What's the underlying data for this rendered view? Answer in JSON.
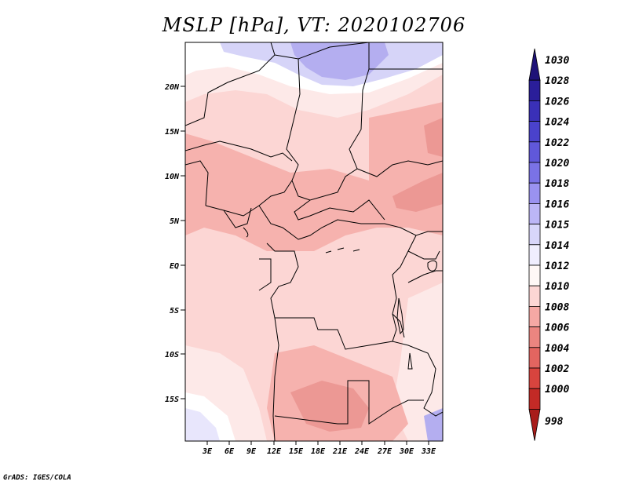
{
  "title": "MSLP [hPa], VT: 2020102706",
  "footer": "GrADS: IGES/COLA",
  "axes": {
    "y_ticks": [
      "20N",
      "15N",
      "10N",
      "5N",
      "EQ",
      "5S",
      "10S",
      "15S"
    ],
    "x_ticks": [
      "3E",
      "6E",
      "9E",
      "12E",
      "15E",
      "18E",
      "21E",
      "24E",
      "27E",
      "30E",
      "33E"
    ]
  },
  "colorbar": {
    "labels": [
      "1030",
      "1028",
      "1026",
      "1024",
      "1022",
      "1020",
      "1018",
      "1016",
      "1015",
      "1014",
      "1012",
      "1010",
      "1008",
      "1006",
      "1004",
      "1002",
      "1000",
      "998"
    ],
    "colors": [
      "#1e1278",
      "#2a1e9a",
      "#3a30b8",
      "#4a42cc",
      "#6058da",
      "#7a72e6",
      "#9a92f0",
      "#bcb6f6",
      "#d8d6fa",
      "#f0eefe",
      "#fff8f6",
      "#fcd6d4",
      "#f5a8a4",
      "#eb8580",
      "#e36560",
      "#d8443e",
      "#c32a26",
      "#a81c1a"
    ]
  },
  "colors": {
    "land_light": "#fbd0ce",
    "land_mid": "#f6b2ae",
    "land_dark": "#ec9894",
    "high_blue": "#d6d4f8",
    "high_blue2": "#b4aef0",
    "background": "#ffffff"
  }
}
